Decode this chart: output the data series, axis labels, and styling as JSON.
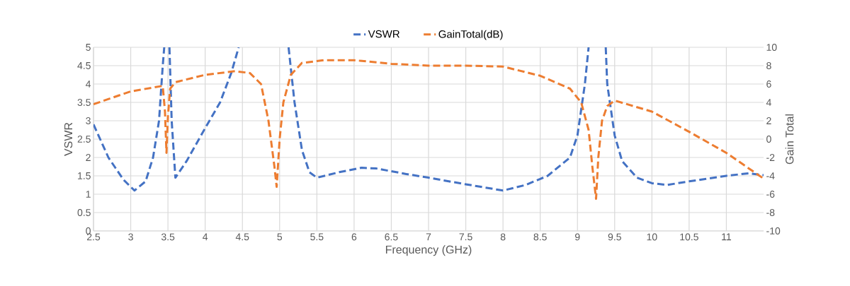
{
  "chart_data": {
    "type": "line",
    "xlabel": "Frequency (GHz)",
    "ylabel": "VSWR",
    "y2label": "Gain Total",
    "xlim": [
      2.5,
      11.5
    ],
    "xticks": [
      2.5,
      3,
      3.5,
      4,
      4.5,
      5,
      5.5,
      6,
      6.5,
      7,
      7.5,
      8,
      8.5,
      9,
      9.5,
      10,
      10.5,
      11
    ],
    "ylim": [
      0,
      5
    ],
    "yticks": [
      0,
      0.5,
      1,
      1.5,
      2,
      2.5,
      3,
      3.5,
      4,
      4.5,
      5
    ],
    "y2lim": [
      -10,
      10
    ],
    "y2ticks": [
      -10,
      -8,
      -6,
      -4,
      -2,
      0,
      2,
      4,
      6,
      8,
      10
    ],
    "grid": true,
    "legend": "top",
    "line_style": "dashed",
    "series": [
      {
        "name": "VSWR",
        "color": "#4472c4",
        "x": [
          2.5,
          2.7,
          2.9,
          3.05,
          3.2,
          3.3,
          3.38,
          3.43,
          3.45,
          3.48,
          3.52,
          3.55,
          3.6,
          3.75,
          4.0,
          4.2,
          4.35,
          4.45,
          4.8,
          5.12,
          5.2,
          5.3,
          5.4,
          5.5,
          5.8,
          6.1,
          6.3,
          6.7,
          7.0,
          7.5,
          8.0,
          8.3,
          8.6,
          8.9,
          9.0,
          9.1,
          9.15,
          9.3,
          9.38,
          9.4,
          9.5,
          9.6,
          9.8,
          10.0,
          10.2,
          10.5,
          11.0,
          11.3,
          11.5
        ],
        "values": [
          2.9,
          2.0,
          1.4,
          1.1,
          1.35,
          2.0,
          3.0,
          4.5,
          5,
          null,
          5,
          3.0,
          1.45,
          1.9,
          2.8,
          3.5,
          4.3,
          5,
          null,
          5,
          3.5,
          2.2,
          1.6,
          1.45,
          1.6,
          1.72,
          1.7,
          1.55,
          1.45,
          1.27,
          1.1,
          1.25,
          1.5,
          2.0,
          2.6,
          4.0,
          5,
          null,
          5,
          4.0,
          2.6,
          1.9,
          1.45,
          1.3,
          1.25,
          1.35,
          1.5,
          1.57,
          1.52
        ]
      },
      {
        "name": "GainTotal(dB)",
        "color": "#ed7d31",
        "axis": "y2",
        "x": [
          2.5,
          3.0,
          3.43,
          3.46,
          3.48,
          3.5,
          3.53,
          3.6,
          4.0,
          4.4,
          4.6,
          4.75,
          4.85,
          4.93,
          4.96,
          5.0,
          5.05,
          5.15,
          5.3,
          5.6,
          6.0,
          6.5,
          7.0,
          7.5,
          8.0,
          8.5,
          8.9,
          9.05,
          9.15,
          9.2,
          9.25,
          9.28,
          9.33,
          9.4,
          9.5,
          10.0,
          10.5,
          11.0,
          11.5
        ],
        "values": [
          3.8,
          5.2,
          5.8,
          3.0,
          -1.5,
          2.5,
          5.5,
          6.2,
          7.0,
          7.4,
          7.2,
          6.0,
          2.0,
          -3.0,
          -5.2,
          0,
          4.0,
          7.0,
          8.3,
          8.6,
          8.6,
          8.2,
          8.0,
          8.0,
          7.9,
          6.9,
          5.5,
          4.0,
          1.0,
          -3.0,
          -6.5,
          -2.0,
          2.0,
          3.6,
          4.2,
          3.0,
          0.8,
          -1.5,
          -4.3
        ]
      }
    ]
  }
}
